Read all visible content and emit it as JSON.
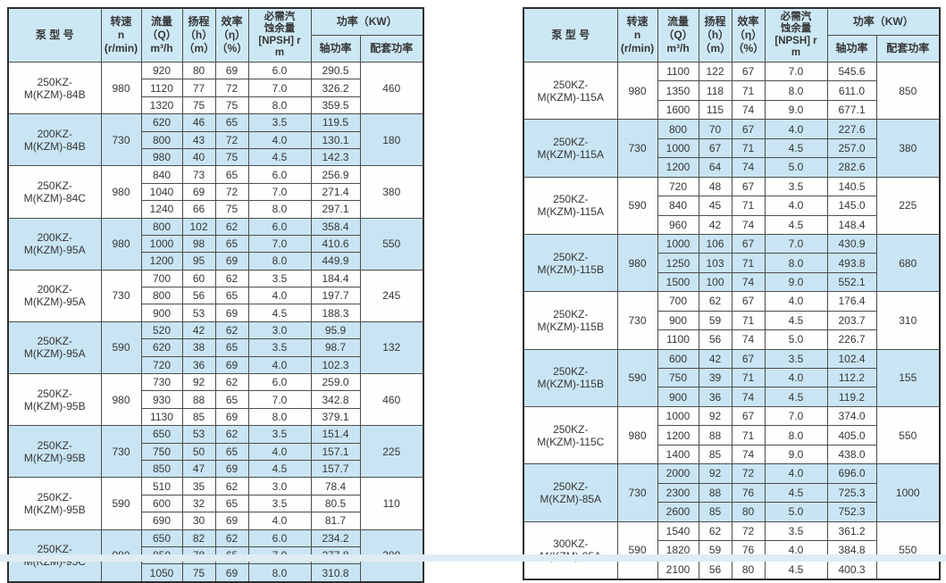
{
  "page": {
    "background_color": "#ffffff",
    "footer_strip_color": "#dfecf3",
    "header_bg_color": "#cde8f5",
    "alt_row_color": "#c9e5f3",
    "border_color": "#4d4d4d",
    "text_color": "#363636"
  },
  "table_header": {
    "model": "泵  型  号",
    "speed": "转速\nn\n(r/min)",
    "flow": "流量\n（Q）\nm³/h",
    "head": "扬程\n（h）\n（m）",
    "efficiency": "效率\n（η）\n（%）",
    "npsh": "必需汽\n蚀余量\n[NPSH] r\nm",
    "power": "功率（KW）",
    "shaft_power": "轴功率",
    "matched_power": "配套功率"
  },
  "left_table": {
    "groups": [
      {
        "model": "250KZ-M(KZM)-84B",
        "speed": "980",
        "matched_power": "460",
        "rows": [
          [
            "920",
            "80",
            "69",
            "6.0",
            "290.5"
          ],
          [
            "1120",
            "77",
            "72",
            "7.0",
            "326.2"
          ],
          [
            "1320",
            "75",
            "75",
            "8.0",
            "359.5"
          ]
        ]
      },
      {
        "model": "200KZ-M(KZM)-84B",
        "speed": "730",
        "matched_power": "180",
        "rows": [
          [
            "620",
            "46",
            "65",
            "3.5",
            "119.5"
          ],
          [
            "800",
            "43",
            "72",
            "4.0",
            "130.1"
          ],
          [
            "980",
            "40",
            "75",
            "4.5",
            "142.3"
          ]
        ]
      },
      {
        "model": "250KZ-M(KZM)-84C",
        "speed": "980",
        "matched_power": "380",
        "rows": [
          [
            "840",
            "73",
            "65",
            "6.0",
            "256.9"
          ],
          [
            "1040",
            "69",
            "72",
            "7.0",
            "271.4"
          ],
          [
            "1240",
            "66",
            "75",
            "8.0",
            "297.1"
          ]
        ]
      },
      {
        "model": "200KZ-M(KZM)-95A",
        "speed": "980",
        "matched_power": "550",
        "rows": [
          [
            "800",
            "102",
            "62",
            "6.0",
            "358.4"
          ],
          [
            "1000",
            "98",
            "65",
            "7.0",
            "410.6"
          ],
          [
            "1200",
            "95",
            "69",
            "8.0",
            "449.9"
          ]
        ]
      },
      {
        "model": "200KZ-M(KZM)-95A",
        "speed": "730",
        "matched_power": "245",
        "rows": [
          [
            "700",
            "60",
            "62",
            "3.5",
            "184.4"
          ],
          [
            "800",
            "56",
            "65",
            "4.0",
            "197.7"
          ],
          [
            "900",
            "53",
            "69",
            "4.5",
            "188.3"
          ]
        ]
      },
      {
        "model": "250KZ-M(KZM)-95A",
        "speed": "590",
        "matched_power": "132",
        "rows": [
          [
            "520",
            "42",
            "62",
            "3.0",
            "95.9"
          ],
          [
            "620",
            "38",
            "65",
            "3.5",
            "98.7"
          ],
          [
            "720",
            "36",
            "69",
            "4.0",
            "102.3"
          ]
        ]
      },
      {
        "model": "250KZ-M(KZM)-95B",
        "speed": "980",
        "matched_power": "460",
        "rows": [
          [
            "730",
            "92",
            "62",
            "6.0",
            "259.0"
          ],
          [
            "930",
            "88",
            "65",
            "7.0",
            "342.8"
          ],
          [
            "1130",
            "85",
            "69",
            "8.0",
            "379.1"
          ]
        ]
      },
      {
        "model": "250KZ-M(KZM)-95B",
        "speed": "730",
        "matched_power": "225",
        "rows": [
          [
            "650",
            "53",
            "62",
            "3.5",
            "151.4"
          ],
          [
            "750",
            "50",
            "65",
            "4.0",
            "157.1"
          ],
          [
            "850",
            "47",
            "69",
            "4.5",
            "157.7"
          ]
        ]
      },
      {
        "model": "250KZ-M(KZM)-95B",
        "speed": "590",
        "matched_power": "110",
        "rows": [
          [
            "510",
            "35",
            "62",
            "3.0",
            "78.4"
          ],
          [
            "600",
            "32",
            "65",
            "3.5",
            "80.5"
          ],
          [
            "690",
            "30",
            "69",
            "4.0",
            "81.7"
          ]
        ]
      },
      {
        "model": "250KZ-M(KZM)-95C",
        "speed": "980",
        "matched_power": "380",
        "rows": [
          [
            "650",
            "82",
            "62",
            "6.0",
            "234.2"
          ],
          [
            "850",
            "78",
            "65",
            "7.0",
            "277.8"
          ],
          [
            "1050",
            "75",
            "69",
            "8.0",
            "310.8"
          ]
        ]
      }
    ]
  },
  "right_table": {
    "groups": [
      {
        "model": "250KZ-M(KZM)-115A",
        "speed": "980",
        "matched_power": "850",
        "rows": [
          [
            "1100",
            "122",
            "67",
            "7.0",
            "545.6"
          ],
          [
            "1350",
            "118",
            "71",
            "8.0",
            "611.0"
          ],
          [
            "1600",
            "115",
            "74",
            "9.0",
            "677.1"
          ]
        ]
      },
      {
        "model": "250KZ-M(KZM)-115A",
        "speed": "730",
        "matched_power": "380",
        "rows": [
          [
            "800",
            "70",
            "67",
            "4.0",
            "227.6"
          ],
          [
            "1000",
            "67",
            "71",
            "4.5",
            "257.0"
          ],
          [
            "1200",
            "64",
            "74",
            "5.0",
            "282.6"
          ]
        ]
      },
      {
        "model": "250KZ-M(KZM)-115A",
        "speed": "590",
        "matched_power": "225",
        "rows": [
          [
            "720",
            "48",
            "67",
            "3.5",
            "140.5"
          ],
          [
            "840",
            "45",
            "71",
            "4.0",
            "145.0"
          ],
          [
            "960",
            "42",
            "74",
            "4.5",
            "148.4"
          ]
        ]
      },
      {
        "model": "250KZ-M(KZM)-115B",
        "speed": "980",
        "matched_power": "680",
        "rows": [
          [
            "1000",
            "106",
            "67",
            "7.0",
            "430.9"
          ],
          [
            "1250",
            "103",
            "71",
            "8.0",
            "493.8"
          ],
          [
            "1500",
            "100",
            "74",
            "9.0",
            "552.1"
          ]
        ]
      },
      {
        "model": "250KZ-M(KZM)-115B",
        "speed": "730",
        "matched_power": "310",
        "rows": [
          [
            "700",
            "62",
            "67",
            "4.0",
            "176.4"
          ],
          [
            "900",
            "59",
            "71",
            "4.5",
            "203.7"
          ],
          [
            "1100",
            "56",
            "74",
            "5.0",
            "226.7"
          ]
        ]
      },
      {
        "model": "250KZ-M(KZM)-115B",
        "speed": "590",
        "matched_power": "155",
        "rows": [
          [
            "600",
            "42",
            "67",
            "3.5",
            "102.4"
          ],
          [
            "750",
            "39",
            "71",
            "4.0",
            "112.2"
          ],
          [
            "900",
            "36",
            "74",
            "4.5",
            "119.2"
          ]
        ]
      },
      {
        "model": "250KZ-M(KZM)-115C",
        "speed": "980",
        "matched_power": "550",
        "rows": [
          [
            "1000",
            "92",
            "67",
            "7.0",
            "374.0"
          ],
          [
            "1200",
            "88",
            "71",
            "8.0",
            "405.0"
          ],
          [
            "1400",
            "85",
            "74",
            "9.0",
            "438.0"
          ]
        ]
      },
      {
        "model": "250KZ-M(KZM)-85A",
        "speed": "730",
        "matched_power": "1000",
        "rows": [
          [
            "2000",
            "92",
            "72",
            "4.0",
            "696.0"
          ],
          [
            "2300",
            "88",
            "76",
            "4.5",
            "725.3"
          ],
          [
            "2600",
            "85",
            "80",
            "5.0",
            "752.3"
          ]
        ]
      },
      {
        "model": "300KZ-M(KZM)-85A",
        "speed": "590",
        "matched_power": "550",
        "rows": [
          [
            "1540",
            "62",
            "72",
            "3.5",
            "361.2"
          ],
          [
            "1820",
            "59",
            "76",
            "4.0",
            "384.8"
          ],
          [
            "2100",
            "56",
            "80",
            "4.5",
            "400.3"
          ]
        ]
      }
    ]
  }
}
